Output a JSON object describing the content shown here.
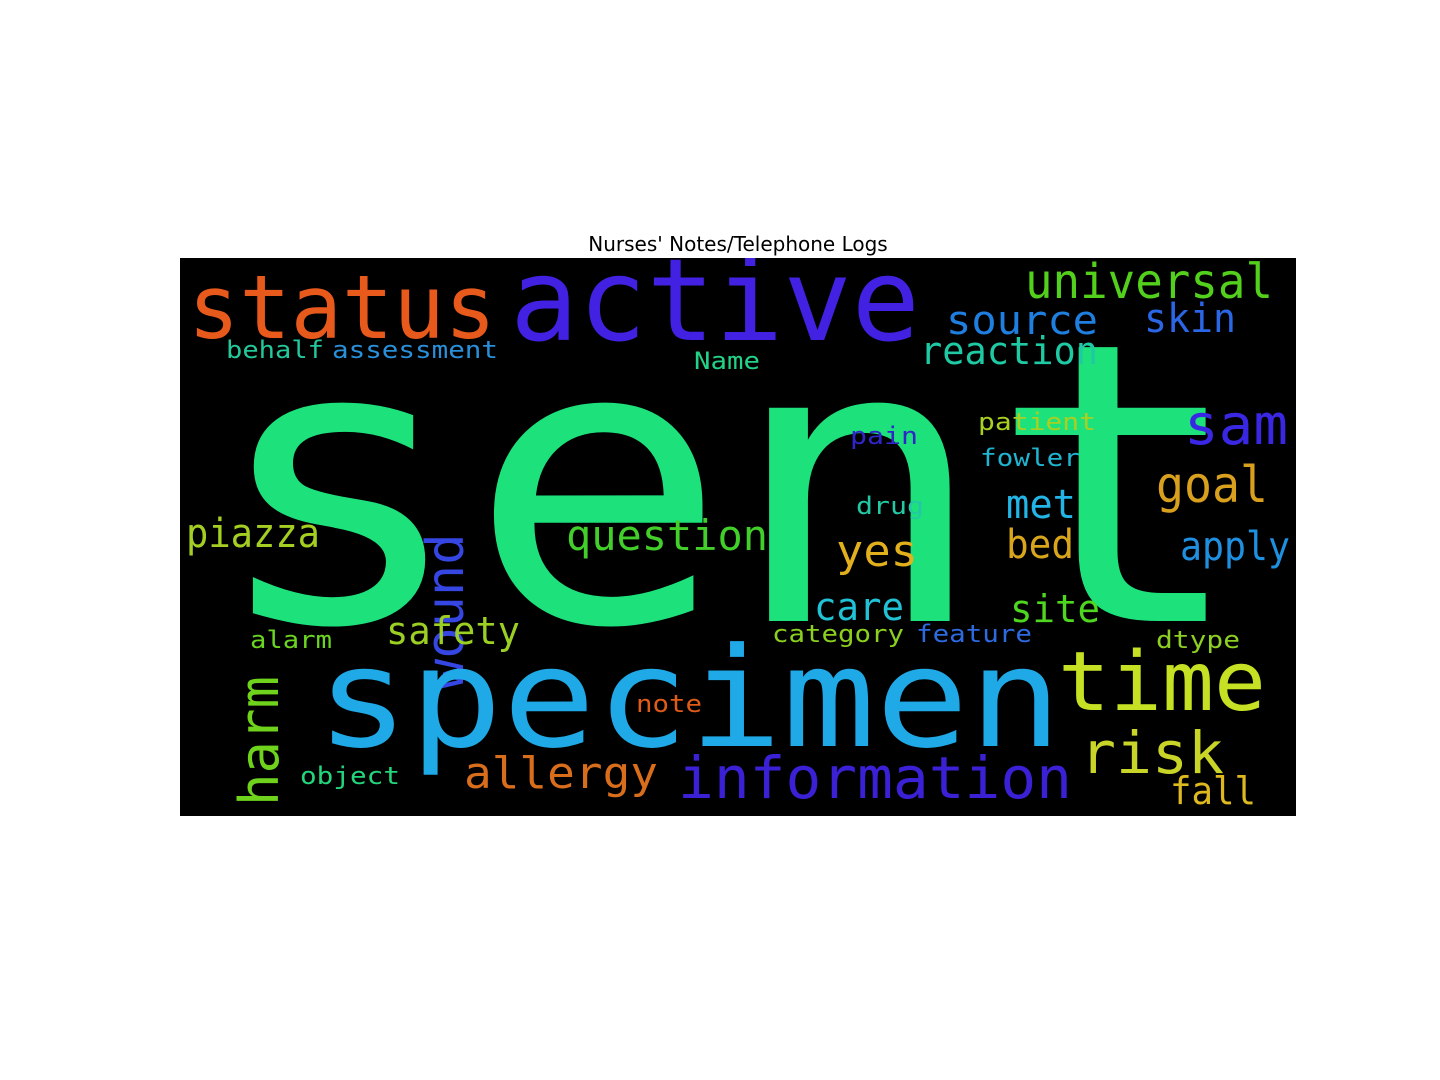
{
  "title": "Nurses' Notes/Telephone Logs",
  "words": [
    {
      "text": "sent",
      "color": "#1de27b"
    },
    {
      "text": "specimen",
      "color": "#1fa9e6"
    },
    {
      "text": "active",
      "color": "#4321e3"
    },
    {
      "text": "status",
      "color": "#e85a1c"
    },
    {
      "text": "time",
      "color": "#c6e024"
    },
    {
      "text": "information",
      "color": "#3b21d6"
    },
    {
      "text": "risk",
      "color": "#c8d427"
    },
    {
      "text": "universal",
      "color": "#52d01c"
    },
    {
      "text": "source",
      "color": "#1f7fe0"
    },
    {
      "text": "skin",
      "color": "#2a66e6"
    },
    {
      "text": "reaction",
      "color": "#1ec9a4"
    },
    {
      "text": "sam",
      "color": "#3a27e4"
    },
    {
      "text": "goal",
      "color": "#d9a01e"
    },
    {
      "text": "wound",
      "color": "#3546e2"
    },
    {
      "text": "question",
      "color": "#43cf2a"
    },
    {
      "text": "piazza",
      "color": "#a4cf22"
    },
    {
      "text": "harm",
      "color": "#6fd21c"
    },
    {
      "text": "allergy",
      "color": "#d86d1c"
    },
    {
      "text": "yes",
      "color": "#e2b01d"
    },
    {
      "text": "met",
      "color": "#22b5e6"
    },
    {
      "text": "bed",
      "color": "#d9a61b"
    },
    {
      "text": "apply",
      "color": "#1f8fe0"
    },
    {
      "text": "care",
      "color": "#21c1d6"
    },
    {
      "text": "site",
      "color": "#4fd61f"
    },
    {
      "text": "safety",
      "color": "#9ccf24"
    },
    {
      "text": "fall",
      "color": "#ddb81f"
    },
    {
      "text": "behalf",
      "color": "#23c79a"
    },
    {
      "text": "assessment",
      "color": "#2a8fd9"
    },
    {
      "text": "Name",
      "color": "#23d286"
    },
    {
      "text": "patient",
      "color": "#a8cf21"
    },
    {
      "text": "pain",
      "color": "#3025c9"
    },
    {
      "text": "fowler",
      "color": "#1fb4cf"
    },
    {
      "text": "drug",
      "color": "#22c9a4"
    },
    {
      "text": "alarm",
      "color": "#6ad521"
    },
    {
      "text": "category",
      "color": "#8bcf1f"
    },
    {
      "text": "feature",
      "color": "#2d6ae0"
    },
    {
      "text": "dtype",
      "color": "#8dcf22"
    },
    {
      "text": "note",
      "color": "#e05a18"
    },
    {
      "text": "object",
      "color": "#22d67b"
    }
  ]
}
